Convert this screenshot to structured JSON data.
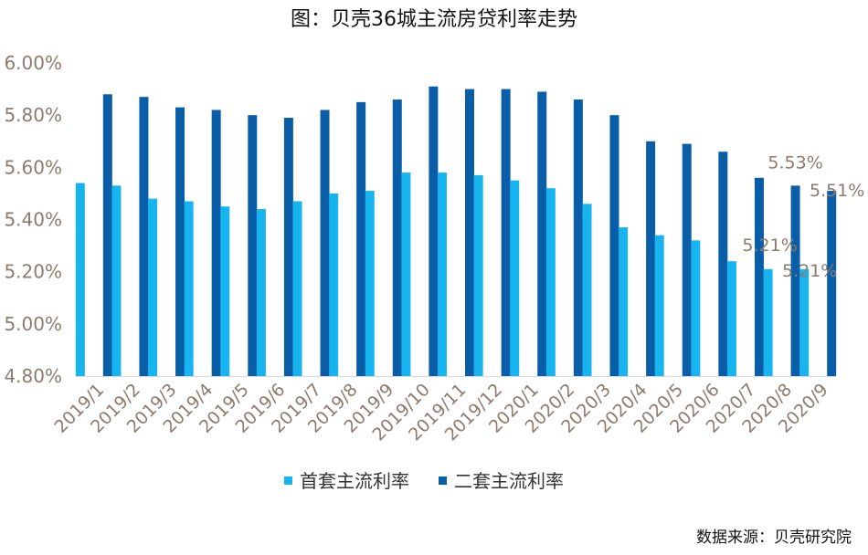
{
  "chart_data": {
    "type": "bar",
    "title": "图：贝壳36城主流房贷利率走势",
    "source": "数据来源：贝壳研究院",
    "categories": [
      "2019/1",
      "2019/2",
      "2019/3",
      "2019/4",
      "2019/5",
      "2019/6",
      "2019/7",
      "2019/8",
      "2019/9",
      "2019/10",
      "2019/11",
      "2019/12",
      "2020/1",
      "2020/2",
      "2020/3",
      "2020/4",
      "2020/5",
      "2020/6",
      "2020/7",
      "2020/8",
      "2020/9"
    ],
    "series": [
      {
        "name": "首套主流利率",
        "color": "#18b4f0",
        "values": [
          5.54,
          5.53,
          5.48,
          5.47,
          5.45,
          5.44,
          5.47,
          5.5,
          5.51,
          5.58,
          5.58,
          5.57,
          5.55,
          5.52,
          5.46,
          5.37,
          5.34,
          5.32,
          5.24,
          5.21,
          5.21
        ]
      },
      {
        "name": "二套主流利率",
        "color": "#0a5ea8",
        "values": [
          5.88,
          5.87,
          5.83,
          5.82,
          5.8,
          5.79,
          5.82,
          5.85,
          5.86,
          5.91,
          5.9,
          5.9,
          5.89,
          5.86,
          5.8,
          5.7,
          5.69,
          5.66,
          5.56,
          5.53,
          5.51
        ]
      }
    ],
    "y_ticks": [
      "4.80%",
      "5.00%",
      "5.20%",
      "5.40%",
      "5.60%",
      "5.80%",
      "6.00%"
    ],
    "ylim": [
      4.8,
      6.0
    ],
    "data_labels": [
      {
        "series": 0,
        "index": 19,
        "text": "5.21%"
      },
      {
        "series": 0,
        "index": 20,
        "text": "5.21%"
      },
      {
        "series": 1,
        "index": 19,
        "text": "5.53%"
      },
      {
        "series": 1,
        "index": 20,
        "text": "5.51%"
      }
    ],
    "legend_position": "bottom",
    "grid": false
  }
}
